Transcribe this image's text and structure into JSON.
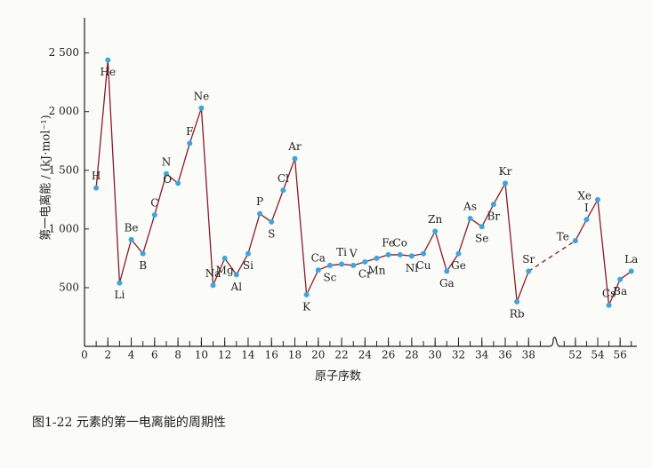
{
  "chart_data": {
    "type": "line",
    "caption": "图1-22   元素的第一电离能的周期性",
    "xlabel": "原子序数",
    "ylabel": "第一电离能 / (kJ·mol⁻¹)",
    "x_segments": [
      {
        "xlim": [
          0,
          39.5
        ],
        "xticks": [
          0,
          2,
          4,
          6,
          8,
          10,
          12,
          14,
          16,
          18,
          20,
          22,
          24,
          26,
          28,
          30,
          32,
          34,
          36,
          38
        ]
      },
      {
        "xlim": [
          50.5,
          57.5
        ],
        "xticks": [
          52,
          54,
          56
        ]
      }
    ],
    "ylim": [
      0,
      2800
    ],
    "yticks": [
      {
        "value": 500,
        "label": "500"
      },
      {
        "value": 1000,
        "label": "1 000"
      },
      {
        "value": 1500,
        "label": "1 500"
      },
      {
        "value": 2000,
        "label": "2 000"
      },
      {
        "value": 2500,
        "label": "2 500"
      }
    ],
    "line_color": "#8b1a2b",
    "marker_color": "#3aa6e0",
    "x": [
      1,
      2,
      3,
      4,
      5,
      6,
      7,
      8,
      9,
      10,
      11,
      12,
      13,
      14,
      15,
      16,
      17,
      18,
      19,
      20,
      21,
      22,
      23,
      24,
      25,
      26,
      27,
      28,
      29,
      30,
      31,
      32,
      33,
      34,
      35,
      36,
      37,
      38,
      52,
      53,
      54,
      55,
      56,
      57
    ],
    "point_labels": [
      "H",
      "He",
      "Li",
      "Be",
      "B",
      "C",
      "N",
      "O",
      "F",
      "Ne",
      "Na",
      "Mg",
      "Al",
      "Si",
      "P",
      "S",
      "Cl",
      "Ar",
      "K",
      "Ca",
      "Sc",
      "Ti",
      "V",
      "Cr",
      "Mn",
      "Fe",
      "Co",
      "Ni",
      "Cu",
      "Zn",
      "Ga",
      "Ge",
      "As",
      "Se",
      "Br",
      "Kr",
      "Rb",
      "Sr",
      "Te",
      "I",
      "Xe",
      "Cs",
      "Ba",
      "La"
    ],
    "values": [
      1350,
      2440,
      540,
      910,
      790,
      1120,
      1470,
      1390,
      1730,
      2030,
      520,
      750,
      610,
      790,
      1130,
      1060,
      1330,
      1600,
      440,
      650,
      690,
      700,
      690,
      720,
      750,
      780,
      780,
      770,
      790,
      980,
      640,
      790,
      1090,
      1020,
      1210,
      1390,
      380,
      640,
      900,
      1080,
      1250,
      350,
      570,
      640
    ]
  }
}
